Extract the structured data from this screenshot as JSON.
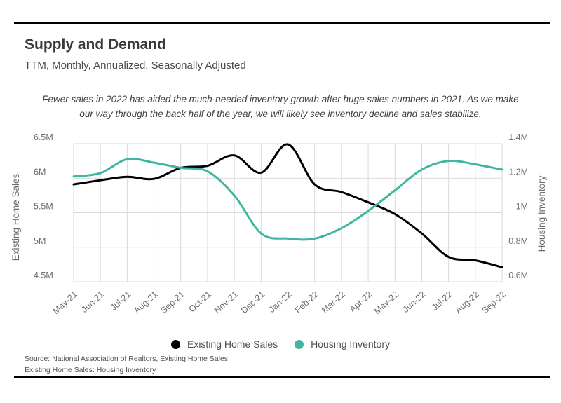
{
  "header": {
    "title": "Supply and Demand",
    "subtitle": "TTM, Monthly, Annualized, Seasonally Adjusted"
  },
  "annotation": {
    "line1": "Fewer sales in 2022 has aided the much-needed inventory growth after huge sales numbers in 2021. As we make",
    "line2": "our way through the back half of the year, we will likely see inventory decline and sales stabilize."
  },
  "chart_data": {
    "type": "line",
    "title": "Supply and Demand",
    "categories": [
      "May-21",
      "Jun-21",
      "Jul-21",
      "Aug-21",
      "Sep-21",
      "Oct-21",
      "Nov-21",
      "Dec-21",
      "Jan-22",
      "Feb-22",
      "Mar-22",
      "Apr-22",
      "May-22",
      "Jun-22",
      "Jul-22",
      "Aug-22",
      "Sep-22"
    ],
    "series": [
      {
        "name": "Existing Home Sales",
        "axis": "left",
        "color": "#000000",
        "values": [
          5.91,
          5.97,
          6.02,
          5.99,
          6.15,
          6.18,
          6.33,
          6.08,
          6.49,
          5.91,
          5.8,
          5.65,
          5.48,
          5.2,
          4.86,
          4.81,
          4.71
        ]
      },
      {
        "name": "Housing Inventory",
        "axis": "right",
        "color": "#42b5a2",
        "values": [
          1.21,
          1.23,
          1.31,
          1.29,
          1.26,
          1.24,
          1.1,
          0.88,
          0.85,
          0.85,
          0.91,
          1.01,
          1.13,
          1.25,
          1.3,
          1.28,
          1.25
        ]
      }
    ],
    "left_axis": {
      "label": "Existing Home Sales",
      "min": 4.5,
      "max": 6.5,
      "tick_values": [
        6.5,
        6.0,
        5.5,
        5.0,
        4.5
      ],
      "tick_labels": [
        "6.5M",
        "6M",
        "5.5M",
        "5M",
        "4.5M"
      ]
    },
    "right_axis": {
      "label": "Housing Inventory",
      "min": 0.6,
      "max": 1.4,
      "tick_values": [
        1.4,
        1.2,
        1.0,
        0.8,
        0.6
      ],
      "tick_labels": [
        "1.4M",
        "1.2M",
        "1M",
        "0.8M",
        "0.6M"
      ]
    },
    "grid": true,
    "grid_color": "#d9d9d9",
    "legend_position": "bottom"
  },
  "legend": {
    "items": [
      {
        "label": "Existing Home Sales",
        "color": "#000000"
      },
      {
        "label": "Housing Inventory",
        "color": "#42b5a2"
      }
    ]
  },
  "source": {
    "line1": "Source:  National Association of Realtors, Existing Home Sales;",
    "line2": "Existing Home Sales: Housing Inventory"
  }
}
